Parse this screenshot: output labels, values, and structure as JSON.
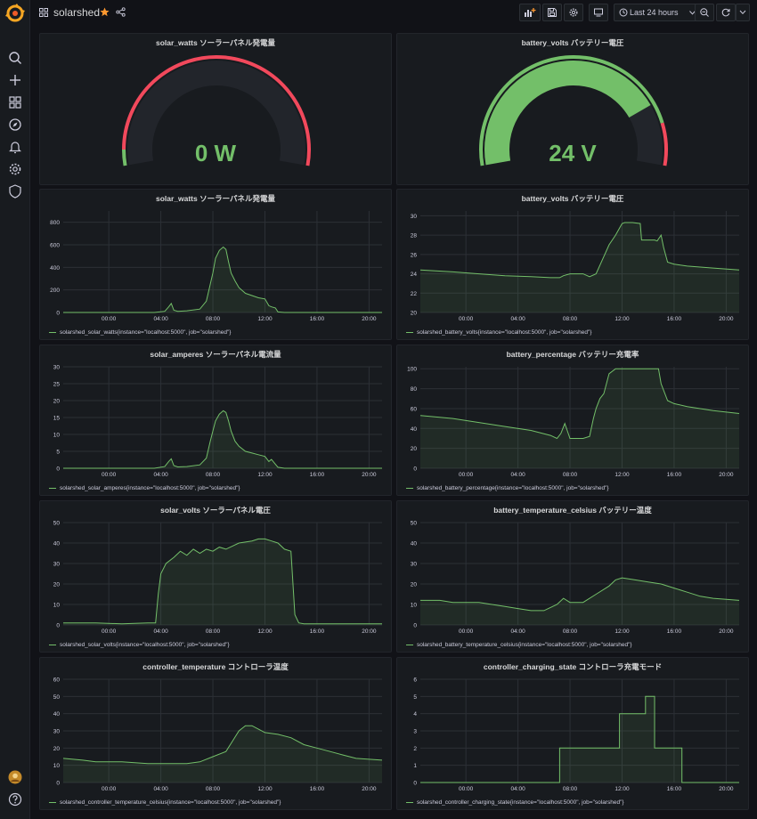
{
  "header": {
    "title": "solarshed",
    "time_range": "Last 24 hours",
    "star_color": "#ff9830"
  },
  "sidebar": {
    "items": [
      "search-icon",
      "plus-icon",
      "dashboards-icon",
      "explore-icon",
      "alerting-icon",
      "settings-icon",
      "shield-icon"
    ],
    "bottom": [
      "avatar",
      "help-icon"
    ]
  },
  "colors": {
    "series": "#73bf69",
    "gauge_red": "#f2495c",
    "gauge_bg": "#22252b"
  },
  "gauges": [
    {
      "title": "solar_watts ソーラーパネル発電量",
      "value_text": "0 W",
      "value": 0,
      "min": 0,
      "max": 1000,
      "thresholds": [
        {
          "to": 50,
          "color": "#73bf69"
        },
        {
          "to": 1000,
          "color": "#f2495c"
        }
      ]
    },
    {
      "title": "battery_volts バッテリー電圧",
      "value_text": "24 V",
      "value": 24,
      "min": 0,
      "max": 30,
      "thresholds": [
        {
          "to": 26,
          "color": "#73bf69"
        },
        {
          "to": 30,
          "color": "#f2495c"
        }
      ]
    }
  ],
  "chart_data": [
    {
      "type": "area",
      "title": "solar_watts ソーラーパネル発電量",
      "legend": "solarshed_solar_watts{instance=\"localhost:5000\", job=\"solarshed\"}",
      "ylim": [
        0,
        900
      ],
      "yticks": [
        0,
        200,
        400,
        600,
        800
      ],
      "xticks": [
        "00:00",
        "04:00",
        "08:00",
        "12:00",
        "16:00",
        "20:00"
      ],
      "xtick_pos": [
        3,
        7,
        11,
        15,
        19,
        23
      ],
      "xlim": [
        -0.5,
        24
      ],
      "x": [
        -0.5,
        6.5,
        7.3,
        7.6,
        7.8,
        8.0,
        8.3,
        9,
        10,
        10.5,
        10.8,
        11.0,
        11.2,
        11.5,
        11.8,
        12.0,
        12.2,
        12.4,
        12.7,
        13.0,
        13.5,
        14,
        14.5,
        15,
        15.3,
        15.5,
        15.8,
        16.0,
        16.5,
        24
      ],
      "y": [
        0,
        0,
        10,
        50,
        80,
        20,
        10,
        15,
        30,
        100,
        250,
        350,
        480,
        550,
        580,
        560,
        450,
        350,
        280,
        220,
        170,
        150,
        130,
        120,
        60,
        50,
        40,
        5,
        0,
        0
      ]
    },
    {
      "type": "area",
      "title": "battery_volts バッテリー電圧",
      "legend": "solarshed_battery_volts{instance=\"localhost:5000\", job=\"solarshed\"}",
      "ylim": [
        20,
        30.5
      ],
      "yticks": [
        20,
        22,
        24,
        26,
        28,
        30
      ],
      "xticks": [
        "00:00",
        "04:00",
        "08:00",
        "12:00",
        "16:00",
        "20:00"
      ],
      "xtick_pos": [
        3,
        7,
        11,
        15,
        19,
        23
      ],
      "xlim": [
        -0.5,
        24
      ],
      "x": [
        -0.5,
        2,
        4,
        6,
        8,
        9.5,
        10.2,
        10.5,
        11,
        12,
        12.5,
        13,
        13.5,
        14,
        14.5,
        15,
        15.2,
        15.8,
        16.4,
        16.5,
        16.8,
        17.5,
        17.7,
        18,
        18.2,
        18.5,
        19,
        20,
        22,
        24
      ],
      "y": [
        24.4,
        24.2,
        24.0,
        23.8,
        23.7,
        23.6,
        23.6,
        23.8,
        24,
        24,
        23.7,
        24.0,
        25.5,
        27.0,
        28.0,
        29.2,
        29.3,
        29.3,
        29.2,
        27.5,
        27.5,
        27.5,
        27.4,
        28.0,
        26.7,
        25.2,
        25.0,
        24.8,
        24.6,
        24.4
      ]
    },
    {
      "type": "area",
      "title": "solar_amperes ソーラーパネル電流量",
      "legend": "solarshed_solar_amperes{instance=\"localhost:5000\", job=\"solarshed\"}",
      "ylim": [
        0,
        30
      ],
      "yticks": [
        0,
        5,
        10,
        15,
        20,
        25,
        30
      ],
      "xticks": [
        "00:00",
        "04:00",
        "08:00",
        "12:00",
        "16:00",
        "20:00"
      ],
      "xtick_pos": [
        3,
        7,
        11,
        15,
        19,
        23
      ],
      "xlim": [
        -0.5,
        24
      ],
      "x": [
        -0.5,
        6.5,
        7.3,
        7.6,
        7.8,
        8.0,
        8.3,
        9,
        10,
        10.5,
        10.8,
        11.0,
        11.2,
        11.5,
        11.8,
        12.0,
        12.2,
        12.4,
        12.7,
        13.0,
        13.5,
        14,
        14.5,
        15,
        15.3,
        15.5,
        15.8,
        16.0,
        16.5,
        24
      ],
      "y": [
        0,
        0,
        0.5,
        2,
        2.8,
        0.8,
        0.4,
        0.5,
        1,
        3,
        8,
        11,
        14,
        16,
        17,
        16.5,
        14,
        11,
        8,
        6.5,
        5,
        4.5,
        4,
        3.5,
        2,
        2.6,
        1.2,
        0.3,
        0,
        0
      ]
    },
    {
      "type": "area",
      "title": "battery_percentage バッテリー充電率",
      "legend": "solarshed_battery_percentage{instance=\"localhost:5000\", job=\"solarshed\"}",
      "ylim": [
        0,
        102
      ],
      "yticks": [
        0,
        20,
        40,
        60,
        80,
        100
      ],
      "xticks": [
        "00:00",
        "04:00",
        "08:00",
        "12:00",
        "16:00",
        "20:00"
      ],
      "xtick_pos": [
        3,
        7,
        11,
        15,
        19,
        23
      ],
      "xlim": [
        -0.5,
        24
      ],
      "x": [
        -0.5,
        2,
        4,
        6,
        8,
        9.5,
        10,
        10.3,
        10.6,
        11,
        12,
        12.5,
        12.8,
        13,
        13.3,
        13.6,
        14,
        14.5,
        15,
        16,
        17.5,
        17.8,
        18.0,
        18.5,
        19,
        20,
        22,
        24
      ],
      "y": [
        53,
        50,
        46,
        42,
        38,
        33,
        30,
        35,
        45,
        30,
        30,
        32,
        50,
        60,
        70,
        75,
        95,
        100,
        100,
        100,
        100,
        100,
        85,
        68,
        65,
        62,
        58,
        55
      ]
    },
    {
      "type": "area",
      "title": "solar_volts ソーラーパネル電圧",
      "legend": "solarshed_solar_volts{instance=\"localhost:5000\", job=\"solarshed\"}",
      "ylim": [
        0,
        50
      ],
      "yticks": [
        0,
        10,
        20,
        30,
        40,
        50
      ],
      "xticks": [
        "00:00",
        "04:00",
        "08:00",
        "12:00",
        "16:00",
        "20:00"
      ],
      "xtick_pos": [
        3,
        7,
        11,
        15,
        19,
        23
      ],
      "xlim": [
        -0.5,
        24
      ],
      "x": [
        -0.5,
        2,
        4,
        6,
        6.6,
        6.8,
        7.0,
        7.4,
        8,
        8.5,
        9,
        9.5,
        10,
        10.5,
        11,
        11.5,
        12,
        13,
        14,
        14.5,
        15,
        15.5,
        16,
        16.5,
        17,
        17.3,
        17.6,
        18,
        19,
        24
      ],
      "y": [
        1,
        1,
        0.5,
        1,
        1,
        15,
        25,
        30,
        33,
        36,
        34,
        37,
        35,
        37,
        36,
        38,
        37,
        40,
        41,
        42,
        42,
        41,
        40,
        37,
        36,
        5,
        1,
        0.5,
        0.5,
        0.5
      ]
    },
    {
      "type": "area",
      "title": "battery_temperature_celsius バッテリー温度",
      "legend": "solarshed_battery_temperature_celsius{instance=\"localhost:5000\", job=\"solarshed\"}",
      "ylim": [
        0,
        50
      ],
      "yticks": [
        0,
        10,
        20,
        30,
        40,
        50
      ],
      "xticks": [
        "00:00",
        "04:00",
        "08:00",
        "12:00",
        "16:00",
        "20:00"
      ],
      "xtick_pos": [
        3,
        7,
        11,
        15,
        19,
        23
      ],
      "xlim": [
        -0.5,
        24
      ],
      "x": [
        -0.5,
        1,
        2,
        4,
        5,
        6,
        7,
        8,
        9,
        10,
        10.5,
        11,
        12,
        13,
        14,
        14.5,
        15,
        16,
        17,
        18,
        19,
        20,
        21,
        22,
        24
      ],
      "y": [
        12,
        12,
        11,
        11,
        10,
        9,
        8,
        7,
        7,
        10,
        13,
        11,
        11,
        15,
        19,
        22,
        23,
        22,
        21,
        20,
        18,
        16,
        14,
        13,
        12
      ]
    },
    {
      "type": "area",
      "title": "controller_temperature コントローラ温度",
      "legend": "solarshed_controller_temperature_celsius{instance=\"localhost:5000\", job=\"solarshed\"}",
      "ylim": [
        0,
        60
      ],
      "yticks": [
        0,
        10,
        20,
        30,
        40,
        50,
        60
      ],
      "xticks": [
        "00:00",
        "04:00",
        "08:00",
        "12:00",
        "16:00",
        "20:00"
      ],
      "xtick_pos": [
        3,
        7,
        11,
        15,
        19,
        23
      ],
      "xlim": [
        -0.5,
        24
      ],
      "x": [
        -0.5,
        1,
        2,
        4,
        6,
        8,
        9,
        10,
        11,
        12,
        12.5,
        13,
        13.5,
        14,
        14.5,
        15,
        16,
        17,
        18,
        19,
        20,
        21,
        22,
        24
      ],
      "y": [
        14,
        13,
        12,
        12,
        11,
        11,
        11,
        12,
        15,
        18,
        24,
        30,
        33,
        33,
        31,
        29,
        28,
        26,
        22,
        20,
        18,
        16,
        14,
        13
      ]
    },
    {
      "type": "area",
      "title": "controller_charging_state コントローラ充電モード",
      "legend": "solarshed_controller_charging_state{instance=\"localhost:5000\", job=\"solarshed\"}",
      "ylim": [
        0,
        6
      ],
      "yticks": [
        0,
        1,
        2,
        3,
        4,
        5,
        6
      ],
      "xticks": [
        "00:00",
        "04:00",
        "08:00",
        "12:00",
        "16:00",
        "20:00"
      ],
      "xtick_pos": [
        3,
        7,
        11,
        15,
        19,
        23
      ],
      "xlim": [
        -0.5,
        24
      ],
      "x": [
        -0.5,
        10.2,
        10.2,
        14.8,
        14.8,
        16.8,
        16.8,
        17.5,
        17.5,
        17.8,
        17.8,
        19.6,
        19.6,
        24
      ],
      "y": [
        0,
        0,
        2,
        2,
        4,
        4,
        5,
        5,
        2,
        2,
        2,
        2,
        0,
        0
      ]
    }
  ]
}
